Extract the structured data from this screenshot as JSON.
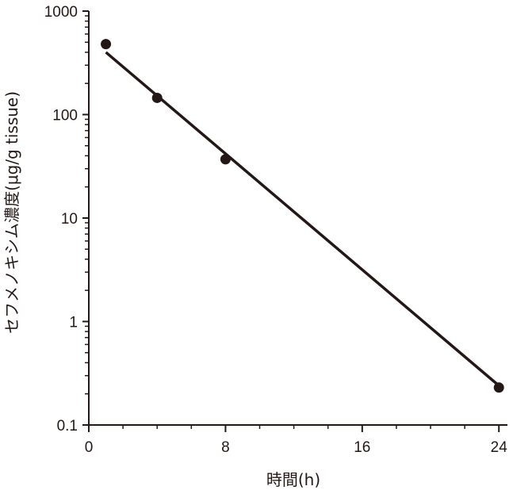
{
  "chart_data": {
    "type": "scatter",
    "xlabel": "時間(h)",
    "ylabel": "セフメノキシム濃度(μg/g tissue)",
    "x_scale": "linear",
    "y_scale": "log",
    "xlim": [
      0,
      24.5
    ],
    "ylim": [
      0.1,
      1000
    ],
    "x_ticks": [
      0,
      8,
      16,
      24
    ],
    "x_tick_labels": [
      "0",
      "8",
      "16",
      "24"
    ],
    "x_minor_ticks": [
      2,
      4,
      6,
      10,
      12,
      14,
      18,
      20,
      22
    ],
    "y_ticks": [
      0.1,
      1,
      10,
      100,
      1000
    ],
    "y_tick_labels": [
      "0.1",
      "1",
      "10",
      "100",
      "1000"
    ],
    "grid": false,
    "points": [
      {
        "x": 1,
        "y": 480
      },
      {
        "x": 4,
        "y": 145
      },
      {
        "x": 8,
        "y": 37
      },
      {
        "x": 24,
        "y": 0.23
      }
    ],
    "fit_line": {
      "x": [
        1,
        24
      ],
      "y": [
        400,
        0.24
      ]
    },
    "colors": {
      "ink": "#231815"
    }
  }
}
